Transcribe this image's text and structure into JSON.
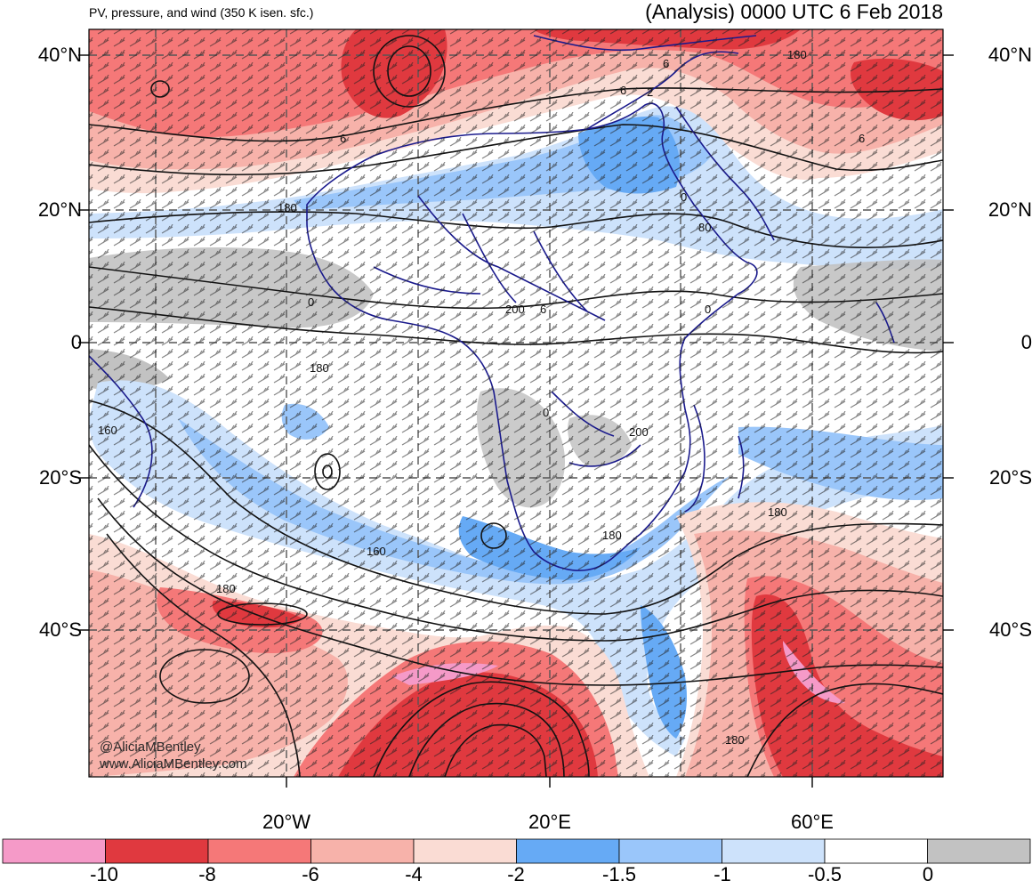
{
  "header": {
    "left_title": "PV, pressure, and wind (350 K isen. sfc.)",
    "right_title": "(Analysis) 0000 UTC 6 Feb 2018"
  },
  "axes": {
    "lat_labels": [
      "40°N",
      "20°N",
      "0",
      "20°S",
      "40°S"
    ],
    "lon_labels": [
      "20°W",
      "20°E",
      "60°E"
    ]
  },
  "contour_labels": [
    "180",
    "6",
    "6",
    "6",
    "6",
    "2",
    "180",
    "80",
    "0",
    "200",
    "6",
    "0",
    "180",
    "0",
    "160",
    "200",
    "160",
    "180",
    "180",
    "180",
    "180",
    "0"
  ],
  "credits": {
    "handle": "@AliciaMBentley",
    "website": "www.AliciaMBentley.com"
  },
  "colorbar": {
    "colors": [
      "#f59ac8",
      "#e0393f",
      "#f57878",
      "#f7b2aa",
      "#fadcd4",
      "#66aaf5",
      "#9ac6fa",
      "#cde2fb",
      "#ffffff",
      "#c2c2c2"
    ],
    "labels": [
      "-10",
      "-8",
      "-6",
      "-4",
      "-2",
      "-1.5",
      "-1",
      "-0.5",
      "0"
    ]
  },
  "palette": {
    "coast": "#1a1a8c",
    "contour": "#111111",
    "grid": "#555555"
  }
}
